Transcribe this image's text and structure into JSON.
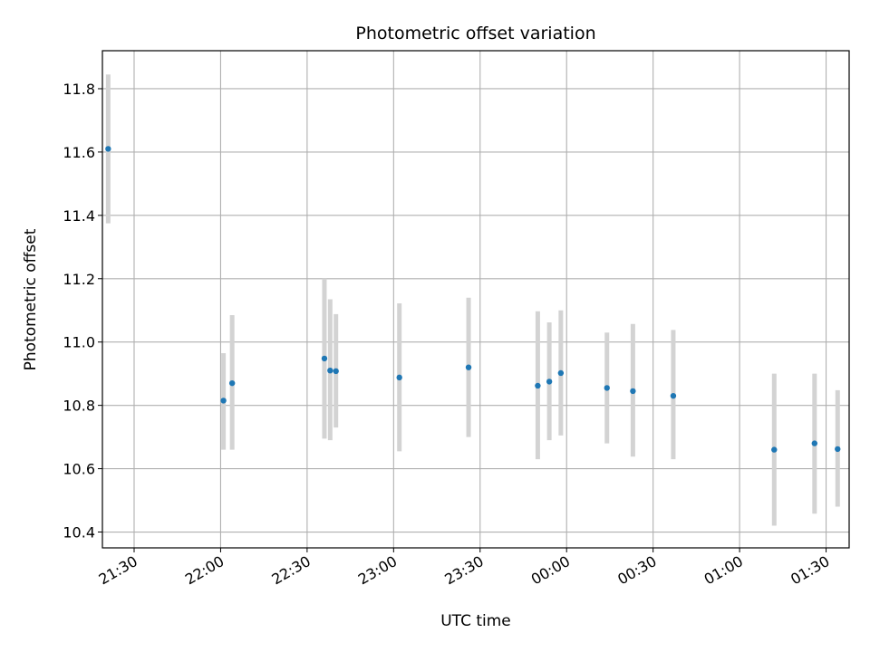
{
  "chart_data": {
    "type": "scatter",
    "title": "Photometric offset variation",
    "xlabel": "UTC time",
    "ylabel": "Photometric offset",
    "x_axis_type": "time",
    "xlim": [
      "21:19",
      "01:38"
    ],
    "ylim": [
      10.35,
      11.92
    ],
    "xticks": [
      "21:30",
      "22:00",
      "22:30",
      "23:00",
      "23:30",
      "00:00",
      "00:30",
      "01:00",
      "01:30"
    ],
    "yticks": [
      10.4,
      10.6,
      10.8,
      11.0,
      11.2,
      11.4,
      11.6,
      11.8
    ],
    "grid": true,
    "series": [
      {
        "color": "#1f77b4",
        "error_color": "#d3d3d3",
        "points": [
          {
            "x": "21:21",
            "y": 11.61,
            "lo": 11.375,
            "hi": 11.845
          },
          {
            "x": "22:01",
            "y": 10.815,
            "lo": 10.66,
            "hi": 10.965
          },
          {
            "x": "22:04",
            "y": 10.87,
            "lo": 10.66,
            "hi": 11.085
          },
          {
            "x": "22:36",
            "y": 10.948,
            "lo": 10.695,
            "hi": 11.2
          },
          {
            "x": "22:38",
            "y": 10.91,
            "lo": 10.69,
            "hi": 11.135
          },
          {
            "x": "22:40",
            "y": 10.908,
            "lo": 10.73,
            "hi": 11.088
          },
          {
            "x": "23:02",
            "y": 10.888,
            "lo": 10.655,
            "hi": 11.122
          },
          {
            "x": "23:26",
            "y": 10.92,
            "lo": 10.7,
            "hi": 11.14
          },
          {
            "x": "23:50",
            "y": 10.862,
            "lo": 10.63,
            "hi": 11.097
          },
          {
            "x": "23:54",
            "y": 10.875,
            "lo": 10.69,
            "hi": 11.062
          },
          {
            "x": "23:58",
            "y": 10.902,
            "lo": 10.705,
            "hi": 11.1
          },
          {
            "x": "00:14",
            "y": 10.855,
            "lo": 10.68,
            "hi": 11.03
          },
          {
            "x": "00:23",
            "y": 10.845,
            "lo": 10.638,
            "hi": 11.057
          },
          {
            "x": "00:37",
            "y": 10.83,
            "lo": 10.63,
            "hi": 11.038
          },
          {
            "x": "01:12",
            "y": 10.66,
            "lo": 10.42,
            "hi": 10.9
          },
          {
            "x": "01:26",
            "y": 10.68,
            "lo": 10.458,
            "hi": 10.9
          },
          {
            "x": "01:34",
            "y": 10.662,
            "lo": 10.48,
            "hi": 10.848
          }
        ]
      }
    ]
  }
}
